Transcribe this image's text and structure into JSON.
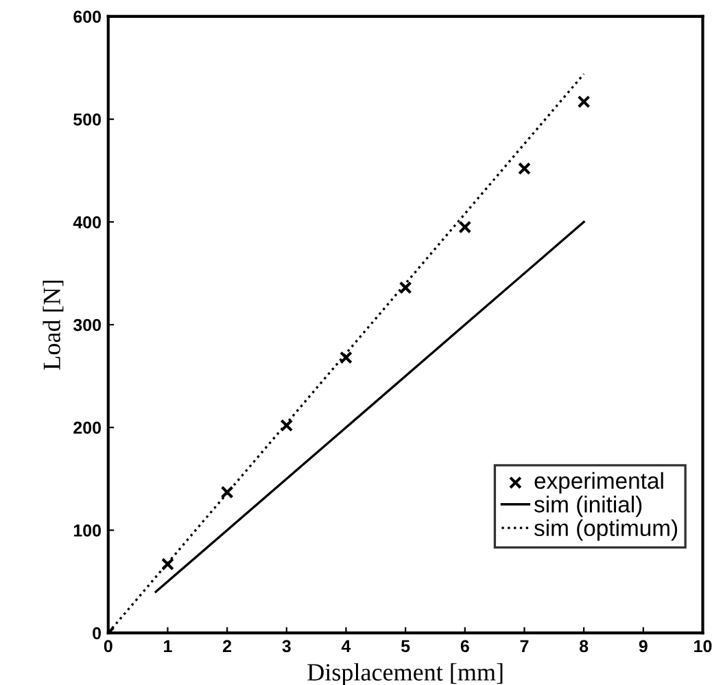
{
  "chart_data": {
    "type": "scatter",
    "xlabel": "Displacement [mm]",
    "ylabel": "Load [N]",
    "xlim": [
      0,
      10
    ],
    "ylim": [
      0,
      600
    ],
    "xticks": [
      0,
      1,
      2,
      3,
      4,
      5,
      6,
      7,
      8,
      9,
      10
    ],
    "yticks": [
      0,
      100,
      200,
      300,
      400,
      500,
      600
    ],
    "grid": false,
    "legend": "bottom right",
    "series": [
      {
        "name": "experimental",
        "marker": "cross",
        "color": "#000000",
        "x": [
          0,
          1,
          2,
          3,
          4,
          5,
          6,
          7,
          8
        ],
        "values": [
          0,
          67,
          137,
          202,
          268,
          336,
          395,
          452,
          517
        ]
      },
      {
        "name": "sim (initial)",
        "type": "line",
        "line_style": "solid",
        "color": "#000000",
        "x": [
          0.8,
          2,
          4,
          6,
          8
        ],
        "values": [
          40,
          100,
          200,
          300,
          400
        ]
      },
      {
        "name": "sim (optimum)",
        "type": "line",
        "line_style": "dotted",
        "color": "#000000",
        "x": [
          0,
          8
        ],
        "values": [
          0,
          544
        ]
      }
    ]
  }
}
